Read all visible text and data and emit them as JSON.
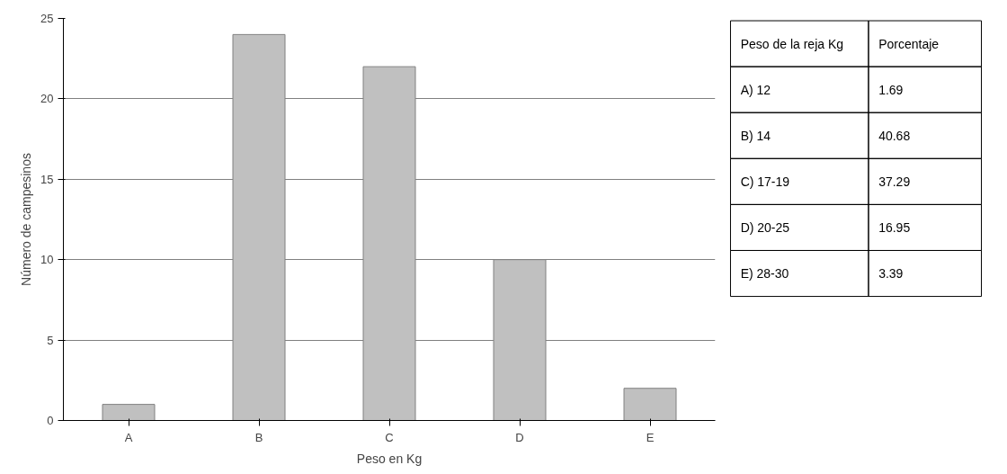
{
  "chart_data": [
    {
      "type": "bar",
      "xlabel": "Peso en Kg",
      "ylabel": "Número de campesinos",
      "categories": [
        "A",
        "B",
        "C",
        "D",
        "E"
      ],
      "values": [
        1,
        24,
        22,
        10,
        2
      ],
      "color": "#c0c0c0",
      "ylim": [
        0,
        25
      ],
      "yticks": [
        0,
        5,
        10,
        15,
        20,
        25
      ],
      "grid": "y"
    },
    {
      "type": "other",
      "annotations": [
        "Peso de la reja Kg",
        "Porcentaje",
        "A) 12",
        "1.69",
        "B) 14",
        "40.68",
        "C) 17-19",
        "37.29",
        "D) 20-25",
        "16.95",
        "E) 28-30",
        "3.39"
      ]
    }
  ]
}
